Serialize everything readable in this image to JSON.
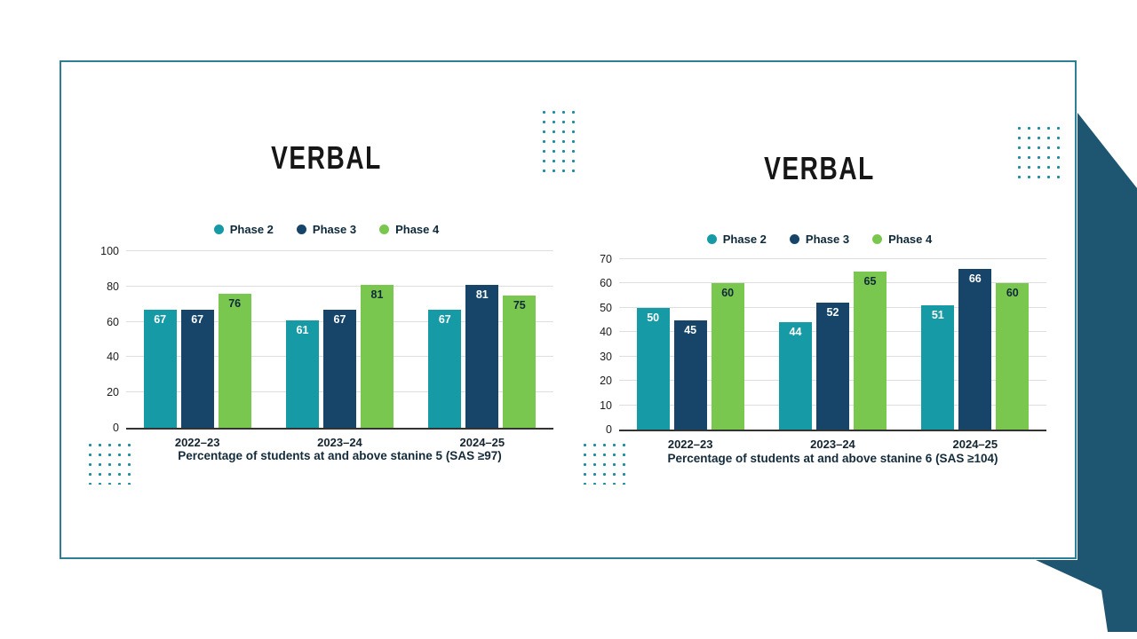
{
  "page": {
    "background_color": "#ffffff",
    "card_border_color": "#2e7f96",
    "ribbon_color": "#1e5672",
    "dot_decoration_color": "#1d8ca3"
  },
  "charts": [
    {
      "title": "VERBAL",
      "xlabel": "Percentage of students at and above stanine 5 (SAS ≥97)",
      "chart_data": {
        "type": "bar",
        "categories": [
          "2022–23",
          "2023–24",
          "2024–25"
        ],
        "series": [
          {
            "name": "Phase 2",
            "color": "#159aa6",
            "label_color": "#ffffff",
            "values": [
              67,
              61,
              67
            ]
          },
          {
            "name": "Phase 3",
            "color": "#164569",
            "label_color": "#ffffff",
            "values": [
              67,
              67,
              81
            ]
          },
          {
            "name": "Phase 4",
            "color": "#7ac74f",
            "label_color": "#10293a",
            "values": [
              76,
              81,
              75
            ]
          }
        ],
        "ylim": [
          0,
          100
        ],
        "yticks": [
          0,
          20,
          40,
          60,
          80,
          100
        ],
        "grid": true,
        "legend_position": "top",
        "value_labels": "inside-top"
      }
    },
    {
      "title": "VERBAL",
      "xlabel": "Percentage of students at and above stanine 6 (SAS ≥104)",
      "chart_data": {
        "type": "bar",
        "categories": [
          "2022–23",
          "2023–24",
          "2024–25"
        ],
        "series": [
          {
            "name": "Phase 2",
            "color": "#159aa6",
            "label_color": "#ffffff",
            "values": [
              50,
              44,
              51
            ]
          },
          {
            "name": "Phase 3",
            "color": "#164569",
            "label_color": "#ffffff",
            "values": [
              45,
              52,
              66
            ]
          },
          {
            "name": "Phase 4",
            "color": "#7ac74f",
            "label_color": "#10293a",
            "values": [
              60,
              65,
              60
            ]
          }
        ],
        "ylim": [
          0,
          70
        ],
        "yticks": [
          0,
          10,
          20,
          30,
          40,
          50,
          60,
          70
        ],
        "grid": true,
        "legend_position": "top",
        "value_labels": "inside-top"
      }
    }
  ]
}
